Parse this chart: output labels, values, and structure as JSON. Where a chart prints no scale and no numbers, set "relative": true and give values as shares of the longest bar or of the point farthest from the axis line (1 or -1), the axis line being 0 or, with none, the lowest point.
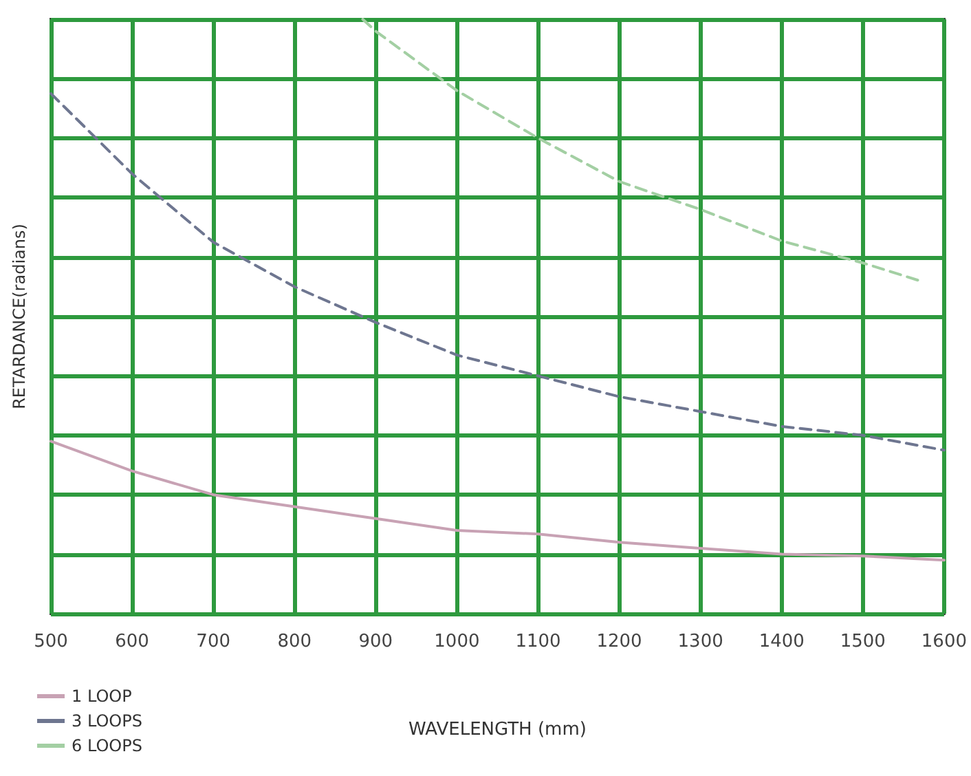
{
  "chart_data": {
    "type": "line",
    "xlabel": "WAVELENGTH (mm)",
    "ylabel": "RETARDANCE(radians)",
    "relative": true,
    "xlim": [
      500,
      1600
    ],
    "xticks": [
      500,
      600,
      700,
      800,
      900,
      1000,
      1100,
      1200,
      1300,
      1400,
      1500,
      1600
    ],
    "grid": true,
    "legend": "bottom left",
    "marker": "none",
    "series": [
      {
        "name": "1 LOOP",
        "color": "#c8a2b4",
        "line_style": "solid",
        "x": [
          500,
          600,
          700,
          800,
          900,
          1000,
          1100,
          1200,
          1300,
          1400,
          1500,
          1600
        ],
        "values": [
          0.29,
          0.24,
          0.2,
          0.18,
          0.16,
          0.14,
          0.134,
          0.12,
          0.11,
          0.1,
          0.097,
          0.09
        ]
      },
      {
        "name": "3 LOOPS",
        "color": "#6e7690",
        "line_style": "dashed",
        "x": [
          500,
          600,
          700,
          800,
          900,
          1000,
          1100,
          1200,
          1300,
          1400,
          1500,
          1600
        ],
        "values": [
          0.875,
          0.74,
          0.625,
          0.55,
          0.49,
          0.435,
          0.4,
          0.365,
          0.34,
          0.315,
          0.3,
          0.275
        ]
      },
      {
        "name": "6 LOOPS",
        "color": "#a3cfa3",
        "line_style": "dashed",
        "x": [
          884,
          900,
          1000,
          1100,
          1200,
          1300,
          1400,
          1500,
          1570
        ],
        "values": [
          1.0,
          0.98,
          0.88,
          0.8,
          0.727,
          0.68,
          0.627,
          0.59,
          0.56
        ]
      }
    ]
  }
}
